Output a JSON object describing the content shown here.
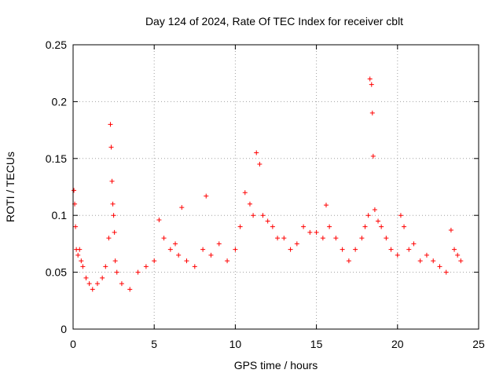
{
  "chart_data": {
    "type": "scatter",
    "title": "Day 124 of 2024, Rate Of TEC Index for receiver cblt",
    "xlabel": "GPS time / hours",
    "ylabel": "ROTI / TECUs",
    "xlim": [
      0,
      25
    ],
    "ylim": [
      0,
      0.25
    ],
    "x_ticks": [
      0,
      5,
      10,
      15,
      20,
      25
    ],
    "x_tick_labels": [
      "0",
      "5",
      "10",
      "15",
      "20",
      "25"
    ],
    "y_ticks": [
      0,
      0.05,
      0.1,
      0.15,
      0.2,
      0.25
    ],
    "y_tick_labels": [
      "0",
      "0.05",
      "0.1",
      "0.15",
      "0.2",
      "0.25"
    ],
    "grid": true,
    "marker": "+",
    "marker_color": "#ff0000",
    "series": [
      {
        "name": "ROTI",
        "x": [
          0.05,
          0.1,
          0.15,
          0.2,
          0.3,
          0.4,
          0.5,
          0.6,
          0.8,
          1.0,
          1.2,
          1.5,
          1.8,
          2.0,
          2.2,
          2.3,
          2.35,
          2.4,
          2.45,
          2.5,
          2.55,
          2.6,
          2.7,
          3.0,
          3.5,
          4.0,
          4.5,
          5.0,
          5.3,
          5.6,
          6.0,
          6.3,
          6.5,
          6.7,
          7.0,
          7.5,
          8.0,
          8.2,
          8.5,
          9.0,
          9.5,
          10.0,
          10.3,
          10.6,
          10.9,
          11.1,
          11.3,
          11.5,
          11.7,
          12.0,
          12.3,
          12.6,
          13.0,
          13.4,
          13.8,
          14.2,
          14.6,
          15.0,
          15.4,
          15.6,
          15.8,
          16.2,
          16.6,
          17.0,
          17.4,
          17.8,
          18.0,
          18.2,
          18.3,
          18.4,
          18.45,
          18.5,
          18.6,
          18.8,
          19.0,
          19.3,
          19.6,
          20.0,
          20.2,
          20.4,
          20.7,
          21.0,
          21.4,
          21.8,
          22.2,
          22.6,
          23.0,
          23.3,
          23.5,
          23.7,
          23.9
        ],
        "y": [
          0.122,
          0.11,
          0.09,
          0.07,
          0.065,
          0.07,
          0.06,
          0.055,
          0.045,
          0.04,
          0.035,
          0.04,
          0.045,
          0.055,
          0.08,
          0.18,
          0.16,
          0.13,
          0.11,
          0.1,
          0.085,
          0.06,
          0.05,
          0.04,
          0.035,
          0.05,
          0.055,
          0.06,
          0.096,
          0.08,
          0.07,
          0.075,
          0.065,
          0.107,
          0.06,
          0.055,
          0.07,
          0.117,
          0.065,
          0.075,
          0.06,
          0.07,
          0.09,
          0.12,
          0.11,
          0.1,
          0.155,
          0.145,
          0.1,
          0.095,
          0.09,
          0.08,
          0.08,
          0.07,
          0.075,
          0.09,
          0.085,
          0.085,
          0.08,
          0.109,
          0.09,
          0.08,
          0.07,
          0.06,
          0.07,
          0.08,
          0.09,
          0.1,
          0.22,
          0.215,
          0.19,
          0.152,
          0.105,
          0.095,
          0.09,
          0.08,
          0.07,
          0.065,
          0.1,
          0.09,
          0.07,
          0.075,
          0.06,
          0.065,
          0.06,
          0.055,
          0.05,
          0.087,
          0.07,
          0.065,
          0.06
        ]
      }
    ]
  }
}
